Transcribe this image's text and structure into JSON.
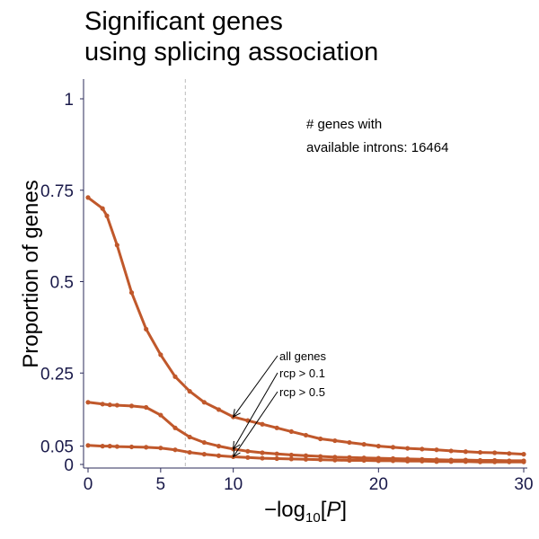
{
  "chart_data": {
    "type": "line",
    "title": [
      "Significant genes",
      "using splicing association"
    ],
    "xlabel": {
      "prefix": "−log",
      "sub": "10",
      "bracket_open": "[",
      "var": "P",
      "bracket_close": "]"
    },
    "ylabel": "Proportion of genes",
    "xlim": [
      0,
      30
    ],
    "ylim": [
      0,
      1
    ],
    "x_ticks": [
      {
        "value": 0,
        "label": "0"
      },
      {
        "value": 5,
        "label": "5"
      },
      {
        "value": 10,
        "label": "10"
      },
      {
        "value": 20,
        "label": "20"
      },
      {
        "value": 30,
        "label": "30"
      }
    ],
    "y_ticks": [
      {
        "value": 0,
        "label": "0"
      },
      {
        "value": 0.05,
        "label": "0.05"
      },
      {
        "value": 0.25,
        "label": "0.25"
      },
      {
        "value": 0.5,
        "label": "0.5"
      },
      {
        "value": 0.75,
        "label": "0.75"
      },
      {
        "value": 1,
        "label": "1"
      }
    ],
    "threshold_line_x": 6.7,
    "annotation": [
      "# genes with",
      "available introns: 16464"
    ],
    "line_color": "#c0582b",
    "series": [
      {
        "name": "all genes",
        "x": [
          0,
          1,
          1.3,
          2,
          3,
          4,
          5,
          6,
          7,
          8,
          9,
          10,
          11,
          12,
          13,
          14,
          15,
          16,
          17,
          18,
          19,
          20,
          21,
          22,
          23,
          24,
          25,
          26,
          27,
          28,
          29,
          30
        ],
        "y": [
          0.73,
          0.7,
          0.68,
          0.6,
          0.47,
          0.37,
          0.3,
          0.24,
          0.2,
          0.17,
          0.15,
          0.13,
          0.12,
          0.11,
          0.1,
          0.09,
          0.08,
          0.07,
          0.065,
          0.06,
          0.055,
          0.05,
          0.047,
          0.044,
          0.042,
          0.04,
          0.037,
          0.035,
          0.033,
          0.032,
          0.03,
          0.028
        ]
      },
      {
        "name": "rcp > 0.1",
        "x": [
          0,
          1,
          1.5,
          2,
          3,
          4,
          5,
          6,
          7,
          8,
          9,
          10,
          11,
          12,
          13,
          14,
          15,
          16,
          17,
          18,
          19,
          20,
          21,
          22,
          23,
          24,
          25,
          26,
          27,
          28,
          29,
          30
        ],
        "y": [
          0.17,
          0.165,
          0.163,
          0.162,
          0.16,
          0.156,
          0.135,
          0.1,
          0.075,
          0.06,
          0.05,
          0.042,
          0.036,
          0.032,
          0.029,
          0.026,
          0.024,
          0.022,
          0.02,
          0.019,
          0.018,
          0.017,
          0.016,
          0.015,
          0.014,
          0.013,
          0.012,
          0.012,
          0.011,
          0.011,
          0.01,
          0.01
        ]
      },
      {
        "name": "rcp > 0.5",
        "x": [
          0,
          1,
          1.5,
          2,
          3,
          4,
          5,
          6,
          7,
          8,
          9,
          10,
          11,
          12,
          13,
          14,
          15,
          16,
          17,
          18,
          19,
          20,
          21,
          22,
          23,
          24,
          25,
          26,
          27,
          28,
          29,
          30
        ],
        "y": [
          0.052,
          0.05,
          0.05,
          0.049,
          0.048,
          0.047,
          0.045,
          0.04,
          0.033,
          0.028,
          0.024,
          0.021,
          0.019,
          0.017,
          0.016,
          0.015,
          0.014,
          0.013,
          0.012,
          0.011,
          0.011,
          0.01,
          0.01,
          0.009,
          0.009,
          0.008,
          0.008,
          0.008,
          0.007,
          0.007,
          0.007,
          0.007
        ]
      }
    ],
    "series_labels": [
      {
        "text": "all genes",
        "arrow_to_x": 10,
        "arrow_to_y": 0.13
      },
      {
        "text": "rcp > 0.1",
        "arrow_to_x": 10,
        "arrow_to_y": 0.042
      },
      {
        "text": "rcp > 0.5",
        "arrow_to_x": 10,
        "arrow_to_y": 0.021
      }
    ]
  }
}
